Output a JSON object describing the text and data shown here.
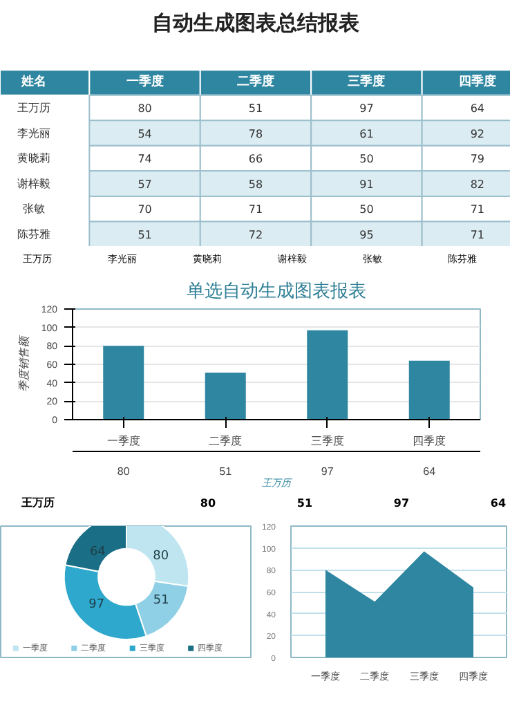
{
  "chart_data": [
    {
      "type": "heatmap",
      "title": "自动生成图表总结报表",
      "ylabel": "姓名",
      "categories": [
        "一季度",
        "二季度",
        "三季度",
        "四季度"
      ],
      "y_categories": [
        "王万历",
        "李光丽",
        "黄晓莉",
        "谢梓毅",
        "张敏",
        "陈芬雅"
      ],
      "cells": [
        [
          80,
          51,
          97,
          64
        ],
        [
          54,
          78,
          61,
          92
        ],
        [
          74,
          66,
          50,
          79
        ],
        [
          57,
          58,
          91,
          82
        ],
        [
          70,
          71,
          50,
          71
        ],
        [
          51,
          72,
          95,
          71
        ]
      ],
      "color": "#2e86a0",
      "data_labels": true
    },
    {
      "type": "bar",
      "title": "单选自动生成图表报表",
      "ylabel": "季度销售额",
      "categories": [
        "一季度",
        "二季度",
        "三季度",
        "四季度"
      ],
      "series": [
        {
          "name": "王万历",
          "color": "#2e86a0",
          "values": [
            80,
            51,
            97,
            64
          ]
        }
      ],
      "ylim": [
        0,
        120
      ],
      "yticks": [
        0,
        20,
        40,
        60,
        80,
        100,
        120
      ],
      "grid": "y",
      "data_labels": true,
      "annotations": [
        "王万历",
        "李光丽",
        "黄晓莉",
        "谢梓毅",
        "张敏",
        "陈芬雅"
      ]
    },
    {
      "type": "donut",
      "categories": [
        "一季度",
        "二季度",
        "三季度",
        "四季度"
      ],
      "values": [
        80,
        51,
        97,
        64
      ],
      "colors": [
        "#bfe6f0",
        "#8fd0e6",
        "#2ea8cc",
        "#1a6e85"
      ],
      "data_labels": true,
      "legend": "bottom",
      "annotations": [
        "王万历",
        "80",
        "51",
        "97",
        "64"
      ]
    },
    {
      "type": "area",
      "categories": [
        "一季度",
        "二季度",
        "三季度",
        "四季度"
      ],
      "values": [
        80,
        51,
        97,
        64
      ],
      "color": "#2e86a0",
      "ylim": [
        0,
        120
      ],
      "yticks": [
        0,
        20,
        40,
        60,
        80,
        100,
        120
      ],
      "grid": "y"
    }
  ]
}
